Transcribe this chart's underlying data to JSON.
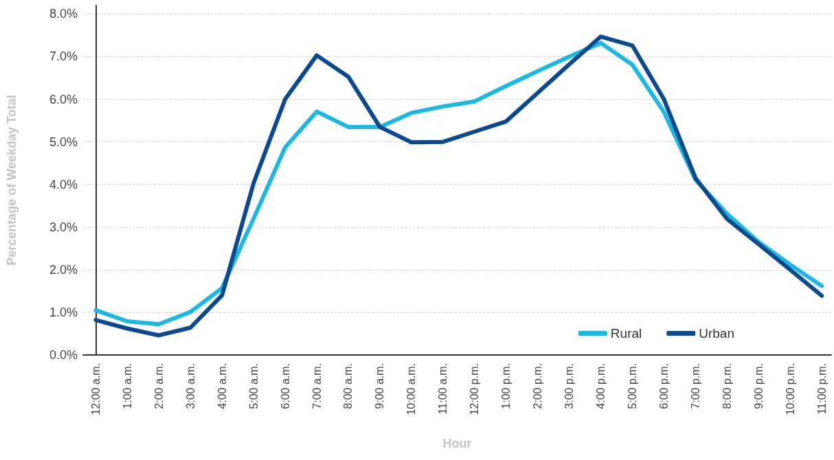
{
  "chart_data": {
    "type": "line",
    "xlabel": "Hour",
    "ylabel": "Percentage of Weekday Total",
    "x": [
      0,
      1,
      2,
      3,
      4,
      5,
      6,
      7,
      8,
      9,
      10,
      11,
      12,
      13,
      14,
      15,
      16,
      17,
      18,
      19,
      20,
      21,
      22,
      23
    ],
    "series": [
      {
        "name": "Rural",
        "color": "#1bb8e3",
        "values": [
          1.05,
          0.79,
          0.72,
          1.01,
          1.57,
          3.2,
          4.87,
          5.71,
          5.35,
          5.35,
          5.68,
          5.83,
          5.95,
          6.31,
          6.66,
          7.0,
          7.32,
          6.81,
          5.7,
          4.11,
          3.31,
          2.65,
          2.12,
          1.62
        ]
      },
      {
        "name": "Urban",
        "color": "#0b4a8f",
        "x": [
          0,
          1,
          2,
          3,
          4,
          5,
          5.5,
          6,
          7,
          8,
          9,
          10,
          11,
          12,
          13,
          14,
          15,
          16,
          17,
          18,
          19,
          20,
          21,
          22,
          23
        ],
        "values": [
          0.82,
          0.62,
          0.46,
          0.64,
          1.4,
          4.03,
          5.02,
          6.0,
          7.03,
          6.53,
          5.35,
          4.99,
          5.0,
          5.24,
          5.48,
          6.15,
          6.82,
          7.47,
          7.26,
          6.0,
          4.15,
          3.19,
          2.6,
          2.0,
          1.39
        ]
      }
    ],
    "xlim": [
      -0.4,
      23.3
    ],
    "xticks": [
      {
        "value": 0,
        "label": "12:00 a.m."
      },
      {
        "value": 1,
        "label": "1:00 a.m."
      },
      {
        "value": 2,
        "label": "2:00 a.m."
      },
      {
        "value": 3,
        "label": "3:00 a.m."
      },
      {
        "value": 4,
        "label": "4:00 a.m."
      },
      {
        "value": 5,
        "label": "5:00 a.m."
      },
      {
        "value": 6,
        "label": "6:00 a.m."
      },
      {
        "value": 7,
        "label": "7:00 a.m."
      },
      {
        "value": 8,
        "label": "8:00 a.m."
      },
      {
        "value": 9,
        "label": "9:00 a.m."
      },
      {
        "value": 10,
        "label": "10:00 a.m."
      },
      {
        "value": 11,
        "label": "11:00 a.m."
      },
      {
        "value": 12,
        "label": "12:00 p.m."
      },
      {
        "value": 13,
        "label": "1:00 p.m."
      },
      {
        "value": 14,
        "label": "2:00 p.m."
      },
      {
        "value": 15,
        "label": "3:00 p.m."
      },
      {
        "value": 16,
        "label": "4:00 p.m."
      },
      {
        "value": 17,
        "label": "5:00 p.m."
      },
      {
        "value": 18,
        "label": "6:00 p.m."
      },
      {
        "value": 19,
        "label": "7:00 p.m."
      },
      {
        "value": 20,
        "label": "8:00 p.m."
      },
      {
        "value": 21,
        "label": "9:00 p.m."
      },
      {
        "value": 22,
        "label": "10:00 p.m."
      },
      {
        "value": 23,
        "label": "11:00 p.m."
      }
    ],
    "ylim": [
      0,
      8.2
    ],
    "yticks": [
      {
        "value": 0,
        "label": "0.0%"
      },
      {
        "value": 1,
        "label": "1.0%"
      },
      {
        "value": 2,
        "label": "2.0%"
      },
      {
        "value": 3,
        "label": "3.0%"
      },
      {
        "value": 4,
        "label": "4.0%"
      },
      {
        "value": 5,
        "label": "5.0%"
      },
      {
        "value": 6,
        "label": "6.0%"
      },
      {
        "value": 7,
        "label": "7.0%"
      },
      {
        "value": 8,
        "label": "8.0%"
      }
    ],
    "grid": "y",
    "legend": "bottom right",
    "marker": "none",
    "line_style": "solid"
  }
}
